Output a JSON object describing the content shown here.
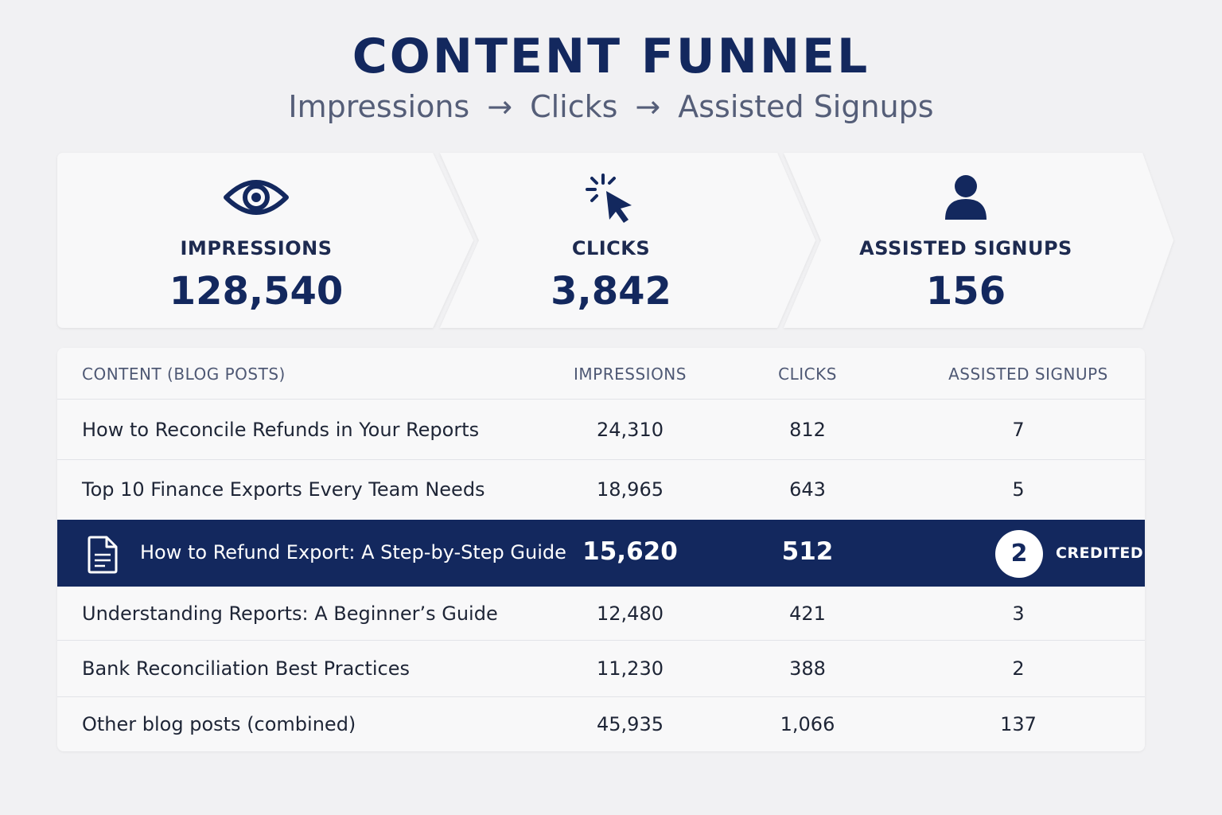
{
  "header": {
    "title": "CONTENT FUNNEL",
    "subtitle_steps": [
      "Impressions",
      "Clicks",
      "Assisted Signups"
    ],
    "arrow": "→"
  },
  "funnel": [
    {
      "icon": "eye-icon",
      "label": "IMPRESSIONS",
      "value": "128,540"
    },
    {
      "icon": "cursor-click-icon",
      "label": "CLICKS",
      "value": "3,842"
    },
    {
      "icon": "user-icon",
      "label": "ASSISTED SIGNUPS",
      "value": "156"
    }
  ],
  "table": {
    "columns": [
      "CONTENT (BLOG POSTS)",
      "IMPRESSIONS",
      "CLICKS",
      "ASSISTED SIGNUPS"
    ],
    "rows": [
      {
        "title": "How to Reconcile Refunds in Your Reports",
        "impressions": "24,310",
        "clicks": "812",
        "signups": "7"
      },
      {
        "title": "Top 10 Finance Exports Every Team Needs",
        "impressions": "18,965",
        "clicks": "643",
        "signups": "5"
      },
      {
        "title": "How to Refund Export: A Step-by-Step Guide",
        "impressions": "15,620",
        "clicks": "512",
        "signups": "2",
        "badge": "CREDITED",
        "icon": "document-icon"
      },
      {
        "title": "Understanding Reports: A Beginner’s Guide",
        "impressions": "12,480",
        "clicks": "421",
        "signups": "3"
      },
      {
        "title": "Bank Reconciliation Best Practices",
        "impressions": "11,230",
        "clicks": "388",
        "signups": "2"
      },
      {
        "title": "Other blog posts (combined)",
        "impressions": "45,935",
        "clicks": "1,066",
        "signups": "137"
      }
    ]
  },
  "colors": {
    "navy": "#13285e",
    "background": "#f1f1f3",
    "card": "#f8f8f9",
    "muted": "#555e78"
  }
}
